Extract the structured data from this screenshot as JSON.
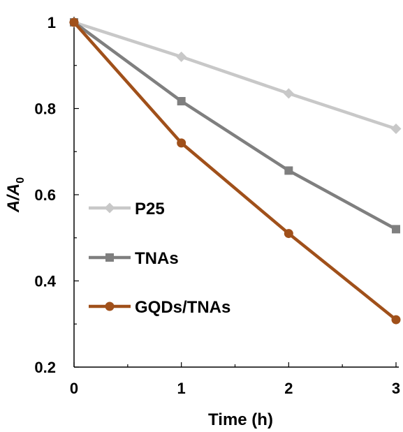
{
  "chart_data": {
    "type": "line",
    "x": [
      0,
      1,
      2,
      3
    ],
    "xlabel": "Time (h)",
    "ylabel": "A/A0",
    "ylabel_parts": {
      "main": "A/A",
      "sub": "0"
    },
    "xlim": [
      0,
      3
    ],
    "ylim": [
      0.2,
      1.0
    ],
    "x_ticks": [
      "0",
      "1",
      "2",
      "3"
    ],
    "y_ticks": [
      "0.2",
      "0.4",
      "0.6",
      "0.8",
      "1"
    ],
    "grid": false,
    "legend_position": "lower-left",
    "series": [
      {
        "name": "P25",
        "values": [
          1.0,
          0.92,
          0.835,
          0.753
        ],
        "color": "#c8c8c8",
        "marker": "diamond"
      },
      {
        "name": "TNAs",
        "values": [
          1.0,
          0.817,
          0.656,
          0.52
        ],
        "color": "#7f7f7f",
        "marker": "square"
      },
      {
        "name": "GQDs/TNAs",
        "values": [
          1.0,
          0.72,
          0.51,
          0.31
        ],
        "color": "#a0501a",
        "marker": "circle"
      }
    ]
  }
}
